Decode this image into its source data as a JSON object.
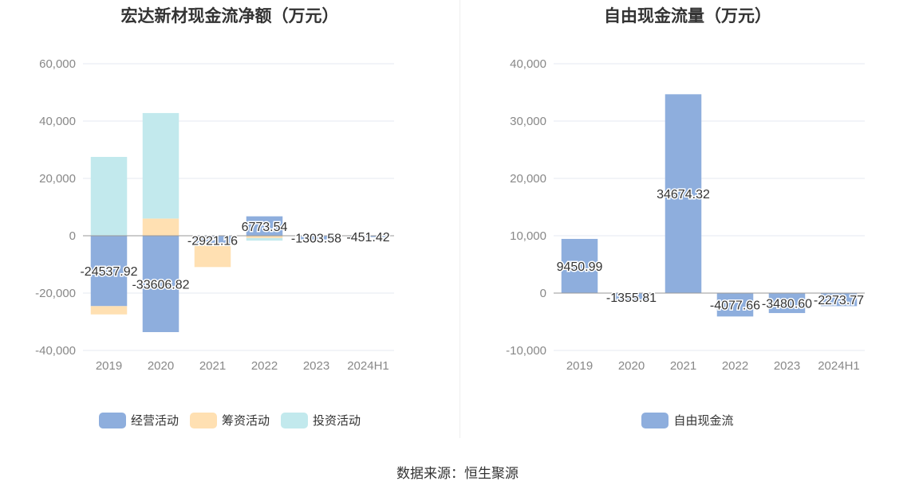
{
  "source_text": "数据来源：恒生聚源",
  "chart_data": [
    {
      "type": "bar",
      "stacked": true,
      "title": "宏达新材现金流净额（万元）",
      "categories": [
        "2019",
        "2020",
        "2021",
        "2022",
        "2023",
        "2024H1"
      ],
      "ylim": [
        -40000,
        60000
      ],
      "yticks": [
        60000,
        40000,
        20000,
        0,
        -20000,
        -40000
      ],
      "ytick_labels": [
        "60,000",
        "40,000",
        "20,000",
        "0",
        "-20,000",
        "-40,000"
      ],
      "grid": true,
      "legend_position": "bottom",
      "series": [
        {
          "name": "经营活动",
          "color": "#8eaedd",
          "values": [
            -24537.92,
            -33606.82,
            -2921.16,
            6773.54,
            -1303.58,
            -451.42
          ]
        },
        {
          "name": "筹资活动",
          "color": "#ffe0b2",
          "values": [
            -2900,
            6000,
            -8000,
            -800,
            0,
            0
          ]
        },
        {
          "name": "投资活动",
          "color": "#c2e9ed",
          "values": [
            27500,
            36800,
            0,
            -900,
            0,
            0
          ]
        }
      ],
      "data_labels": [
        "-24537.92",
        "-33606.82",
        "-2921.16",
        "6773.54",
        "-1303.58",
        "-451.42"
      ]
    },
    {
      "type": "bar",
      "title": "自由现金流量（万元）",
      "categories": [
        "2019",
        "2020",
        "2021",
        "2022",
        "2023",
        "2024H1"
      ],
      "ylim": [
        -10000,
        40000
      ],
      "yticks": [
        40000,
        30000,
        20000,
        10000,
        0,
        -10000
      ],
      "ytick_labels": [
        "40,000",
        "30,000",
        "20,000",
        "10,000",
        "0",
        "-10,000"
      ],
      "grid": true,
      "legend_position": "bottom",
      "series": [
        {
          "name": "自由现金流",
          "color": "#8eaedd",
          "values": [
            9450.99,
            -1355.81,
            34674.32,
            -4077.66,
            -3480.6,
            -2273.77
          ]
        }
      ],
      "data_labels": [
        "9450.99",
        "-1355.81",
        "34674.32",
        "-4077.66",
        "-3480.60",
        "-2273.77"
      ]
    }
  ]
}
